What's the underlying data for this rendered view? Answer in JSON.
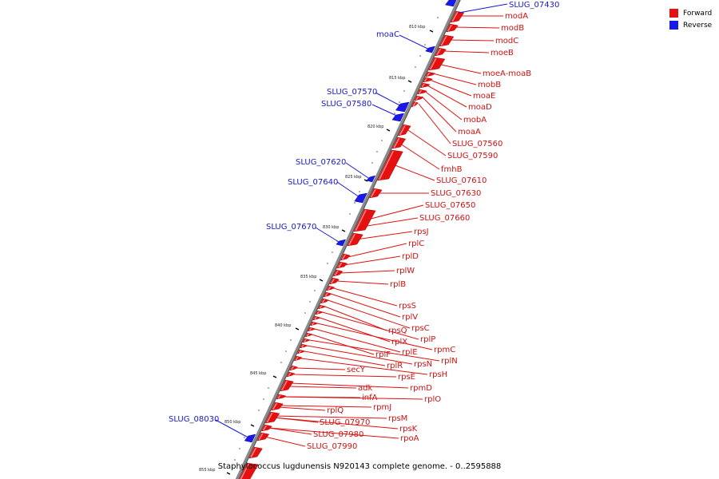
{
  "legend": {
    "forward": {
      "label": "Forward",
      "color": "#e51010"
    },
    "reverse": {
      "label": "Reverse",
      "color": "#1a1ae8"
    }
  },
  "caption": "Staphylococcus lugdunensis N920143 complete genome. - 0..2595888",
  "ticks": [
    "810 kbp",
    "815 kbp",
    "820 kbp",
    "825 kbp",
    "830 kbp",
    "835 kbp",
    "840 kbp",
    "845 kbp",
    "850 kbp",
    "855 kbp"
  ],
  "forward_genes": [
    "modA",
    "modB",
    "modC",
    "moeB",
    "moeA-moaB",
    "mobB",
    "moaE",
    "moaD",
    "mobA",
    "moaA",
    "SLUG_07560",
    "SLUG_07590",
    "fmhB",
    "SLUG_07610",
    "SLUG_07630",
    "SLUG_07650",
    "SLUG_07660",
    "rpsJ",
    "rplC",
    "rplD",
    "rplW",
    "rplB",
    "rpsS",
    "rplV",
    "rpsC",
    "rpsQ",
    "rplP",
    "rplX",
    "rpmC",
    "rplE",
    "rplF",
    "rplN",
    "rpsN",
    "rplR",
    "rpsH",
    "secY",
    "rpsE",
    "rpmD",
    "adk",
    "rplO",
    "infA",
    "rpmJ",
    "rpsM",
    "rplQ",
    "rpsK",
    "SLUG_07970",
    "SLUG_07980",
    "rpoA",
    "SLUG_07990"
  ],
  "reverse_genes": [
    "SLUG_07430",
    "moaC",
    "SLUG_07570",
    "SLUG_07580",
    "SLUG_07620",
    "SLUG_07640",
    "SLUG_07670",
    "SLUG_08030"
  ]
}
